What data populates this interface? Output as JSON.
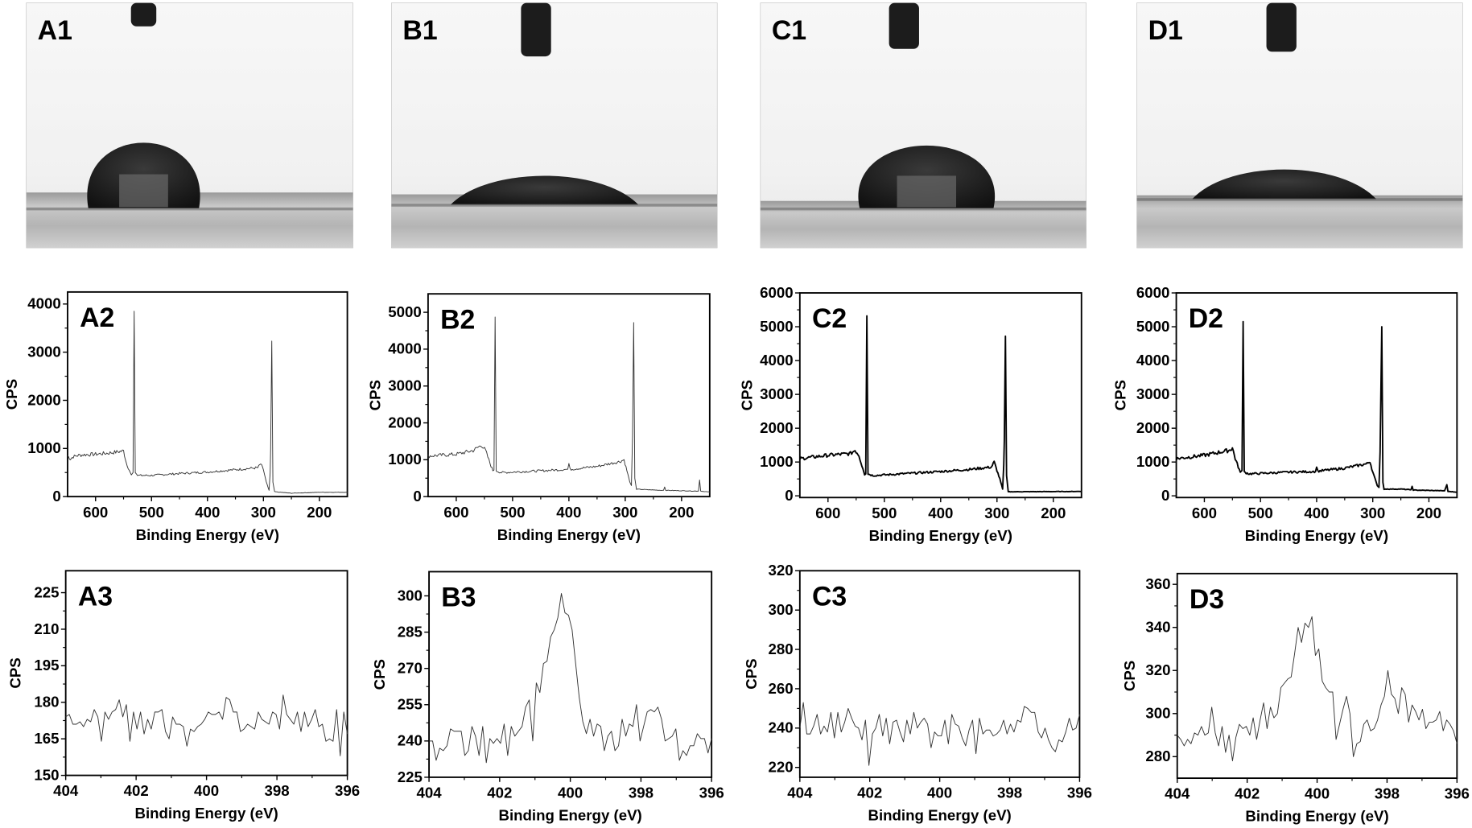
{
  "photos": [
    {
      "label": "A1",
      "drop": "high-contact-angle"
    },
    {
      "label": "B1",
      "drop": "low-contact-angle"
    },
    {
      "label": "C1",
      "drop": "high-contact-angle"
    },
    {
      "label": "D1",
      "drop": "low-contact-angle"
    }
  ],
  "chart_data": [
    {
      "id": "A2",
      "type": "line",
      "title": "A2",
      "xlabel": "Binding Energy (eV)",
      "ylabel": "CPS",
      "xlim": [
        650,
        150
      ],
      "ylim": [
        0,
        4250
      ],
      "xticks": [
        600,
        500,
        400,
        300,
        200
      ],
      "yticks": [
        0,
        1000,
        2000,
        3000,
        4000
      ],
      "line_weight": "thin",
      "points": [
        [
          650,
          850
        ],
        [
          645,
          780
        ],
        [
          640,
          830
        ],
        [
          630,
          860
        ],
        [
          620,
          870
        ],
        [
          600,
          880
        ],
        [
          580,
          900
        ],
        [
          560,
          930
        ],
        [
          550,
          950
        ],
        [
          545,
          700
        ],
        [
          540,
          550
        ],
        [
          536,
          450
        ],
        [
          533,
          500
        ],
        [
          531,
          3850
        ],
        [
          529,
          500
        ],
        [
          525,
          440
        ],
        [
          500,
          440
        ],
        [
          450,
          480
        ],
        [
          400,
          510
        ],
        [
          350,
          560
        ],
        [
          310,
          600
        ],
        [
          305,
          680
        ],
        [
          300,
          560
        ],
        [
          295,
          300
        ],
        [
          290,
          130
        ],
        [
          288,
          500
        ],
        [
          287,
          1000
        ],
        [
          285,
          3230
        ],
        [
          283,
          300
        ],
        [
          280,
          100
        ],
        [
          250,
          70
        ],
        [
          200,
          90
        ],
        [
          150,
          90
        ]
      ]
    },
    {
      "id": "B2",
      "type": "line",
      "title": "B2",
      "xlabel": "Binding Energy (eV)",
      "ylabel": "CPS",
      "xlim": [
        650,
        150
      ],
      "ylim": [
        0,
        5500
      ],
      "xticks": [
        600,
        500,
        400,
        300,
        200
      ],
      "yticks": [
        0,
        1000,
        2000,
        3000,
        4000,
        5000
      ],
      "line_weight": "thin",
      "points": [
        [
          650,
          1100
        ],
        [
          600,
          1150
        ],
        [
          570,
          1250
        ],
        [
          555,
          1400
        ],
        [
          548,
          1250
        ],
        [
          540,
          900
        ],
        [
          535,
          700
        ],
        [
          533,
          720
        ],
        [
          531,
          4870
        ],
        [
          529,
          700
        ],
        [
          520,
          650
        ],
        [
          450,
          700
        ],
        [
          402,
          740
        ],
        [
          400,
          900
        ],
        [
          398,
          740
        ],
        [
          350,
          820
        ],
        [
          310,
          950
        ],
        [
          302,
          1000
        ],
        [
          297,
          700
        ],
        [
          292,
          400
        ],
        [
          289,
          300
        ],
        [
          287,
          1650
        ],
        [
          285,
          4720
        ],
        [
          283,
          500
        ],
        [
          280,
          200
        ],
        [
          250,
          180
        ],
        [
          232,
          170
        ],
        [
          230,
          260
        ],
        [
          228,
          170
        ],
        [
          175,
          150
        ],
        [
          170,
          150
        ],
        [
          168,
          450
        ],
        [
          166,
          150
        ],
        [
          150,
          120
        ]
      ]
    },
    {
      "id": "C2",
      "type": "line",
      "title": "C2",
      "xlabel": "Binding Energy (eV)",
      "ylabel": "CPS",
      "xlim": [
        650,
        150
      ],
      "ylim": [
        -50,
        6000
      ],
      "xticks": [
        600,
        500,
        400,
        300,
        200
      ],
      "yticks": [
        0,
        1000,
        2000,
        3000,
        4000,
        5000,
        6000
      ],
      "line_weight": "thick",
      "points": [
        [
          650,
          1100
        ],
        [
          600,
          1200
        ],
        [
          560,
          1250
        ],
        [
          552,
          1350
        ],
        [
          545,
          1200
        ],
        [
          538,
          800
        ],
        [
          535,
          620
        ],
        [
          533,
          650
        ],
        [
          531,
          5320
        ],
        [
          529,
          650
        ],
        [
          520,
          600
        ],
        [
          450,
          670
        ],
        [
          400,
          720
        ],
        [
          350,
          780
        ],
        [
          310,
          850
        ],
        [
          305,
          1000
        ],
        [
          300,
          750
        ],
        [
          295,
          500
        ],
        [
          290,
          200
        ],
        [
          288,
          900
        ],
        [
          287,
          1600
        ],
        [
          285,
          4720
        ],
        [
          283,
          600
        ],
        [
          280,
          120
        ],
        [
          150,
          130
        ]
      ]
    },
    {
      "id": "D2",
      "type": "line",
      "title": "D2",
      "xlabel": "Binding Energy (eV)",
      "ylabel": "CPS",
      "xlim": [
        650,
        150
      ],
      "ylim": [
        -50,
        6000
      ],
      "xticks": [
        600,
        500,
        400,
        300,
        200
      ],
      "yticks": [
        0,
        1000,
        2000,
        3000,
        4000,
        5000,
        6000
      ],
      "line_weight": "thick",
      "points": [
        [
          650,
          1100
        ],
        [
          600,
          1200
        ],
        [
          555,
          1350
        ],
        [
          550,
          1420
        ],
        [
          545,
          1100
        ],
        [
          536,
          700
        ],
        [
          533,
          750
        ],
        [
          531,
          5150
        ],
        [
          529,
          700
        ],
        [
          520,
          650
        ],
        [
          450,
          700
        ],
        [
          402,
          720
        ],
        [
          400,
          850
        ],
        [
          398,
          730
        ],
        [
          350,
          820
        ],
        [
          310,
          950
        ],
        [
          305,
          1020
        ],
        [
          300,
          700
        ],
        [
          292,
          300
        ],
        [
          289,
          250
        ],
        [
          287,
          1300
        ],
        [
          284,
          5000
        ],
        [
          282,
          400
        ],
        [
          280,
          200
        ],
        [
          250,
          200
        ],
        [
          232,
          180
        ],
        [
          230,
          280
        ],
        [
          228,
          170
        ],
        [
          172,
          150
        ],
        [
          168,
          330
        ],
        [
          166,
          130
        ],
        [
          150,
          110
        ]
      ]
    },
    {
      "id": "A3",
      "type": "line",
      "title": "A3",
      "xlabel": "Binding Energy (eV)",
      "ylabel": "CPS",
      "xlim": [
        404,
        396
      ],
      "ylim": [
        150,
        234
      ],
      "xticks": [
        404,
        402,
        400,
        398,
        396
      ],
      "yticks": [
        150,
        165,
        180,
        195,
        210,
        225
      ],
      "line_weight": "thin",
      "values": [
        174,
        175,
        171,
        171,
        172,
        170,
        173,
        172,
        177,
        174,
        164,
        176,
        173,
        176,
        177,
        181,
        174,
        179,
        164,
        176,
        169,
        176,
        167,
        173,
        169,
        176,
        176,
        177,
        168,
        165,
        174,
        171,
        171,
        170,
        162,
        169,
        168,
        170,
        171,
        173,
        176,
        175,
        175,
        176,
        173,
        182,
        181,
        176,
        176,
        168,
        169,
        171,
        170,
        169,
        176,
        173,
        172,
        171,
        176,
        175,
        169,
        183,
        175,
        173,
        171,
        176,
        168,
        176,
        170,
        173,
        177,
        170,
        171,
        164,
        165,
        164,
        177,
        158,
        176,
        167
      ]
    },
    {
      "id": "B3",
      "type": "line",
      "title": "B3",
      "xlabel": "Binding Energy (eV)",
      "ylabel": "CPS",
      "xlim": [
        404,
        396
      ],
      "ylim": [
        225,
        310
      ],
      "xticks": [
        404,
        402,
        400,
        398,
        396
      ],
      "yticks": [
        225,
        240,
        255,
        270,
        285,
        300
      ],
      "line_weight": "thin",
      "values": [
        240,
        240,
        232,
        237,
        236,
        238,
        245,
        244,
        244,
        244,
        234,
        236,
        246,
        242,
        234,
        246,
        231,
        241,
        239,
        241,
        239,
        247,
        234,
        246,
        242,
        244,
        246,
        254,
        257,
        240,
        264,
        260,
        272,
        273,
        283,
        286,
        291,
        301,
        293,
        292,
        286,
        272,
        258,
        248,
        243,
        249,
        242,
        247,
        246,
        236,
        242,
        244,
        236,
        238,
        249,
        242,
        247,
        246,
        255,
        240,
        246,
        252,
        253,
        252,
        254,
        249,
        240,
        241,
        242,
        245,
        232,
        236,
        234,
        238,
        238,
        243,
        241,
        241,
        235,
        241
      ]
    },
    {
      "id": "C3",
      "type": "line",
      "title": "C3",
      "xlabel": "Binding Energy (eV)",
      "ylabel": "CPS",
      "xlim": [
        404,
        396
      ],
      "ylim": [
        215,
        320
      ],
      "xticks": [
        404,
        402,
        400,
        398,
        396
      ],
      "yticks": [
        220,
        240,
        260,
        280,
        300,
        320
      ],
      "line_weight": "thin",
      "values": [
        240,
        253,
        237,
        237,
        241,
        247,
        237,
        241,
        238,
        248,
        235,
        248,
        238,
        243,
        250,
        245,
        241,
        240,
        234,
        244,
        221,
        237,
        240,
        247,
        236,
        245,
        232,
        243,
        244,
        238,
        233,
        244,
        237,
        248,
        240,
        243,
        245,
        242,
        230,
        238,
        236,
        236,
        244,
        232,
        247,
        242,
        241,
        235,
        231,
        239,
        244,
        227,
        245,
        237,
        239,
        239,
        236,
        237,
        239,
        244,
        237,
        242,
        238,
        244,
        243,
        251,
        250,
        248,
        248,
        238,
        235,
        240,
        234,
        230,
        228,
        234,
        233,
        238,
        245,
        239,
        240,
        247
      ]
    },
    {
      "id": "D3",
      "type": "line",
      "title": "D3",
      "xlabel": "Binding Energy (eV)",
      "ylabel": "CPS",
      "xlim": [
        404,
        396
      ],
      "ylim": [
        270,
        365
      ],
      "xticks": [
        404,
        402,
        400,
        398,
        396
      ],
      "yticks": [
        280,
        300,
        320,
        340,
        360
      ],
      "line_weight": "thin",
      "values": [
        290,
        288,
        285,
        288,
        286,
        291,
        290,
        294,
        290,
        291,
        303,
        291,
        285,
        294,
        282,
        290,
        278,
        289,
        295,
        293,
        294,
        290,
        298,
        288,
        297,
        305,
        293,
        303,
        298,
        300,
        312,
        314,
        316,
        317,
        328,
        340,
        333,
        342,
        340,
        345,
        327,
        330,
        315,
        312,
        310,
        310,
        288,
        295,
        302,
        308,
        300,
        280,
        286,
        287,
        295,
        297,
        292,
        293,
        297,
        304,
        308,
        320,
        309,
        307,
        300,
        312,
        309,
        296,
        304,
        301,
        297,
        302,
        293,
        296,
        296,
        297,
        301,
        292,
        297,
        295,
        292,
        286
      ]
    }
  ]
}
